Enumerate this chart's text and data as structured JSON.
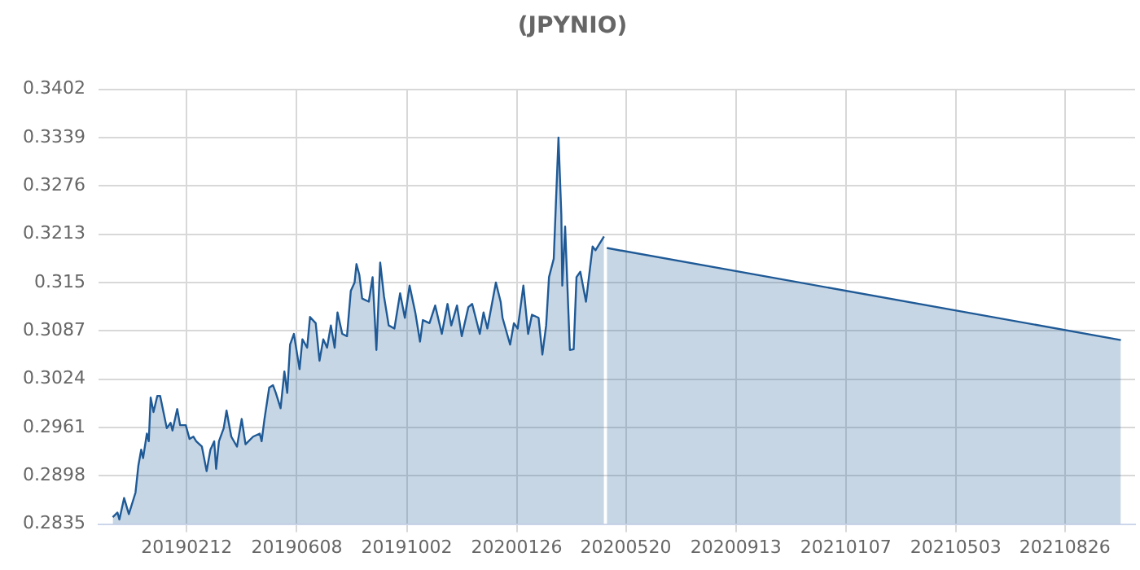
{
  "chart_data": {
    "type": "area",
    "title": "(JPYNIO)",
    "x": [
      "2018-11-26",
      "2018-12-01",
      "2018-12-03",
      "2018-12-08",
      "2018-12-13",
      "2018-12-20",
      "2018-12-23",
      "2018-12-26",
      "2018-12-28",
      "2019-01-01",
      "2019-01-03",
      "2019-01-05",
      "2019-01-08",
      "2019-01-12",
      "2019-01-15",
      "2019-01-22",
      "2019-01-26",
      "2019-01-28",
      "2019-01-31",
      "2019-02-02",
      "2019-02-05",
      "2019-02-11",
      "2019-02-15",
      "2019-02-19",
      "2019-02-22",
      "2019-02-28",
      "2019-03-05",
      "2019-03-09",
      "2019-03-13",
      "2019-03-15",
      "2019-03-18",
      "2019-03-23",
      "2019-03-26",
      "2019-03-31",
      "2019-04-06",
      "2019-04-11",
      "2019-04-15",
      "2019-04-23",
      "2019-04-30",
      "2019-05-02",
      "2019-05-05",
      "2019-05-10",
      "2019-05-14",
      "2019-05-17",
      "2019-05-22",
      "2019-05-26",
      "2019-05-29",
      "2019-06-01",
      "2019-06-05",
      "2019-06-11",
      "2019-06-14",
      "2019-06-19",
      "2019-06-22",
      "2019-06-28",
      "2019-07-02",
      "2019-07-06",
      "2019-07-10",
      "2019-07-14",
      "2019-07-18",
      "2019-07-21",
      "2019-07-26",
      "2019-07-31",
      "2019-08-04",
      "2019-08-08",
      "2019-08-10",
      "2019-08-13",
      "2019-08-16",
      "2019-08-23",
      "2019-08-27",
      "2019-08-31",
      "2019-09-04",
      "2019-09-08",
      "2019-09-13",
      "2019-09-19",
      "2019-09-25",
      "2019-09-30",
      "2019-10-05",
      "2019-10-11",
      "2019-10-16",
      "2019-10-19",
      "2019-10-26",
      "2019-11-01",
      "2019-11-08",
      "2019-11-14",
      "2019-11-18",
      "2019-11-24",
      "2019-11-29",
      "2019-12-06",
      "2019-12-10",
      "2019-12-18",
      "2019-12-22",
      "2019-12-26",
      "2020-01-04",
      "2020-01-09",
      "2020-01-11",
      "2020-01-19",
      "2020-01-23",
      "2020-01-27",
      "2020-02-02",
      "2020-02-07",
      "2020-02-11",
      "2020-02-18",
      "2020-02-22",
      "2020-02-26",
      "2020-02-29",
      "2020-03-05",
      "2020-03-10",
      "2020-03-13",
      "2020-03-14",
      "2020-03-17",
      "2020-03-22",
      "2020-03-26",
      "2020-03-29",
      "2020-04-02",
      "2020-04-08",
      "2020-04-15",
      "2020-04-18",
      "2020-04-27",
      "2020-04-28",
      "2020-04-30",
      "2021-10-24"
    ],
    "series": [
      {
        "color": "#1f5a96",
        "values": [
          0.2844,
          0.285,
          0.2841,
          0.2869,
          0.2848,
          0.2876,
          0.2911,
          0.2932,
          0.2921,
          0.2953,
          0.2943,
          0.3,
          0.2981,
          0.3002,
          0.3002,
          0.296,
          0.2967,
          0.2957,
          0.2974,
          0.2985,
          0.2964,
          0.2964,
          0.2946,
          0.2949,
          0.2943,
          0.2936,
          0.2904,
          0.2932,
          0.2943,
          0.2907,
          0.2943,
          0.296,
          0.2983,
          0.2949,
          0.2936,
          0.2972,
          0.2939,
          0.2949,
          0.2953,
          0.2943,
          0.2972,
          0.3013,
          0.3016,
          0.3006,
          0.2986,
          0.3034,
          0.3006,
          0.3069,
          0.3083,
          0.3037,
          0.3076,
          0.3065,
          0.3105,
          0.3097,
          0.3048,
          0.3076,
          0.3065,
          0.3094,
          0.3065,
          0.3111,
          0.3083,
          0.308,
          0.3139,
          0.315,
          0.3174,
          0.316,
          0.3129,
          0.3125,
          0.3157,
          0.3062,
          0.3176,
          0.3132,
          0.3094,
          0.309,
          0.3136,
          0.3104,
          0.3146,
          0.3111,
          0.3073,
          0.3101,
          0.3097,
          0.312,
          0.3083,
          0.3122,
          0.3094,
          0.312,
          0.308,
          0.3118,
          0.3122,
          0.3083,
          0.3111,
          0.309,
          0.315,
          0.3125,
          0.3104,
          0.3069,
          0.3097,
          0.309,
          0.3146,
          0.3083,
          0.3108,
          0.3104,
          0.3056,
          0.3094,
          0.3157,
          0.3181,
          0.3339,
          0.3238,
          0.3146,
          0.3223,
          0.3062,
          0.3063,
          0.3157,
          0.3164,
          0.3125,
          0.3197,
          0.3192,
          0.321,
          null,
          0.3195,
          0.3075
        ]
      }
    ],
    "xlim": [
      "2018-11-11",
      "2021-11-08"
    ],
    "xticks": [
      {
        "value": "2019-02-12",
        "label": "20190212"
      },
      {
        "value": "2019-06-08",
        "label": "20190608"
      },
      {
        "value": "2019-10-02",
        "label": "20191002"
      },
      {
        "value": "2020-01-26",
        "label": "20200126"
      },
      {
        "value": "2020-05-20",
        "label": "20200520"
      },
      {
        "value": "2020-09-13",
        "label": "20200913"
      },
      {
        "value": "2021-01-07",
        "label": "20210107"
      },
      {
        "value": "2021-05-03",
        "label": "20210503"
      },
      {
        "value": "2021-08-26",
        "label": "20210826"
      }
    ],
    "ylim": [
      0.2835,
      0.3402
    ],
    "yticks": [
      0.2835,
      0.2898,
      0.2961,
      0.3024,
      0.3087,
      0.315,
      0.3213,
      0.3276,
      0.3339,
      0.3402
    ],
    "grid": true,
    "marker": "none",
    "line_style": "solid"
  }
}
